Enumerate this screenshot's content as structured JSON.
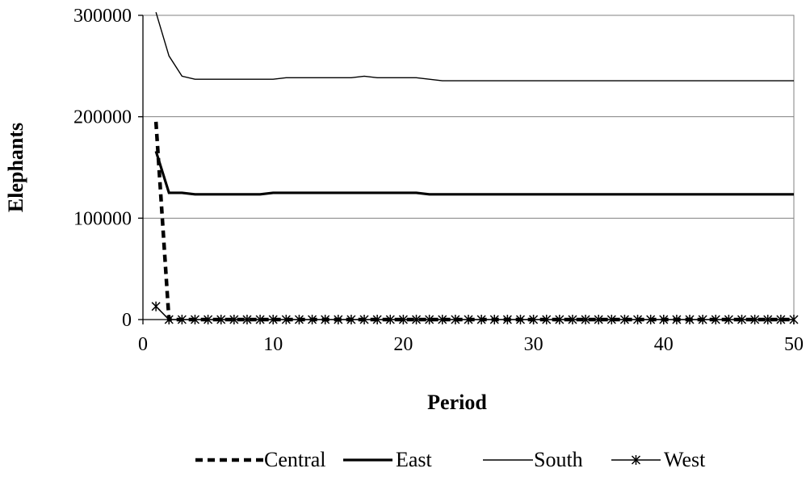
{
  "chart_data": {
    "type": "line",
    "title": "",
    "xlabel": "Period",
    "ylabel": "Elephants",
    "xlim": [
      0,
      50
    ],
    "ylim": [
      0,
      300000
    ],
    "xticks": [
      0,
      10,
      20,
      30,
      40,
      50
    ],
    "yticks": [
      0,
      100000,
      200000,
      300000
    ],
    "grid": "horizontal",
    "legend": "bottom",
    "series": [
      {
        "name": "Central",
        "style": "dashed",
        "points": [
          [
            1,
            195000
          ],
          [
            2,
            0
          ],
          [
            50,
            0
          ]
        ]
      },
      {
        "name": "East",
        "style": "thick",
        "points": [
          [
            1,
            166000
          ],
          [
            2,
            125000
          ],
          [
            3,
            125000
          ],
          [
            4,
            123500
          ],
          [
            9,
            123500
          ],
          [
            10,
            125000
          ],
          [
            21,
            125000
          ],
          [
            22,
            123500
          ],
          [
            50,
            123500
          ]
        ]
      },
      {
        "name": "South",
        "style": "thin",
        "points": [
          [
            1,
            303000
          ],
          [
            2,
            260000
          ],
          [
            3,
            240000
          ],
          [
            4,
            237000
          ],
          [
            10,
            237000
          ],
          [
            11,
            238500
          ],
          [
            16,
            238500
          ],
          [
            17,
            240000
          ],
          [
            18,
            238500
          ],
          [
            21,
            238500
          ],
          [
            23,
            235500
          ],
          [
            50,
            235500
          ]
        ]
      },
      {
        "name": "West",
        "style": "star-marker",
        "points": [
          [
            1,
            13000
          ],
          [
            2,
            0
          ],
          [
            3,
            0
          ],
          [
            4,
            0
          ],
          [
            5,
            0
          ],
          [
            6,
            0
          ],
          [
            7,
            0
          ],
          [
            8,
            0
          ],
          [
            9,
            0
          ],
          [
            10,
            0
          ],
          [
            11,
            0
          ],
          [
            12,
            0
          ],
          [
            13,
            0
          ],
          [
            14,
            0
          ],
          [
            15,
            0
          ],
          [
            16,
            0
          ],
          [
            17,
            0
          ],
          [
            18,
            0
          ],
          [
            19,
            0
          ],
          [
            20,
            0
          ],
          [
            21,
            0
          ],
          [
            22,
            0
          ],
          [
            23,
            0
          ],
          [
            24,
            0
          ],
          [
            25,
            0
          ],
          [
            26,
            0
          ],
          [
            27,
            0
          ],
          [
            28,
            0
          ],
          [
            29,
            0
          ],
          [
            30,
            0
          ],
          [
            31,
            0
          ],
          [
            32,
            0
          ],
          [
            33,
            0
          ],
          [
            34,
            0
          ],
          [
            35,
            0
          ],
          [
            36,
            0
          ],
          [
            37,
            0
          ],
          [
            38,
            0
          ],
          [
            39,
            0
          ],
          [
            40,
            0
          ],
          [
            41,
            0
          ],
          [
            42,
            0
          ],
          [
            43,
            0
          ],
          [
            44,
            0
          ],
          [
            45,
            0
          ],
          [
            46,
            0
          ],
          [
            47,
            0
          ],
          [
            48,
            0
          ],
          [
            49,
            0
          ],
          [
            50,
            0
          ]
        ]
      }
    ]
  }
}
